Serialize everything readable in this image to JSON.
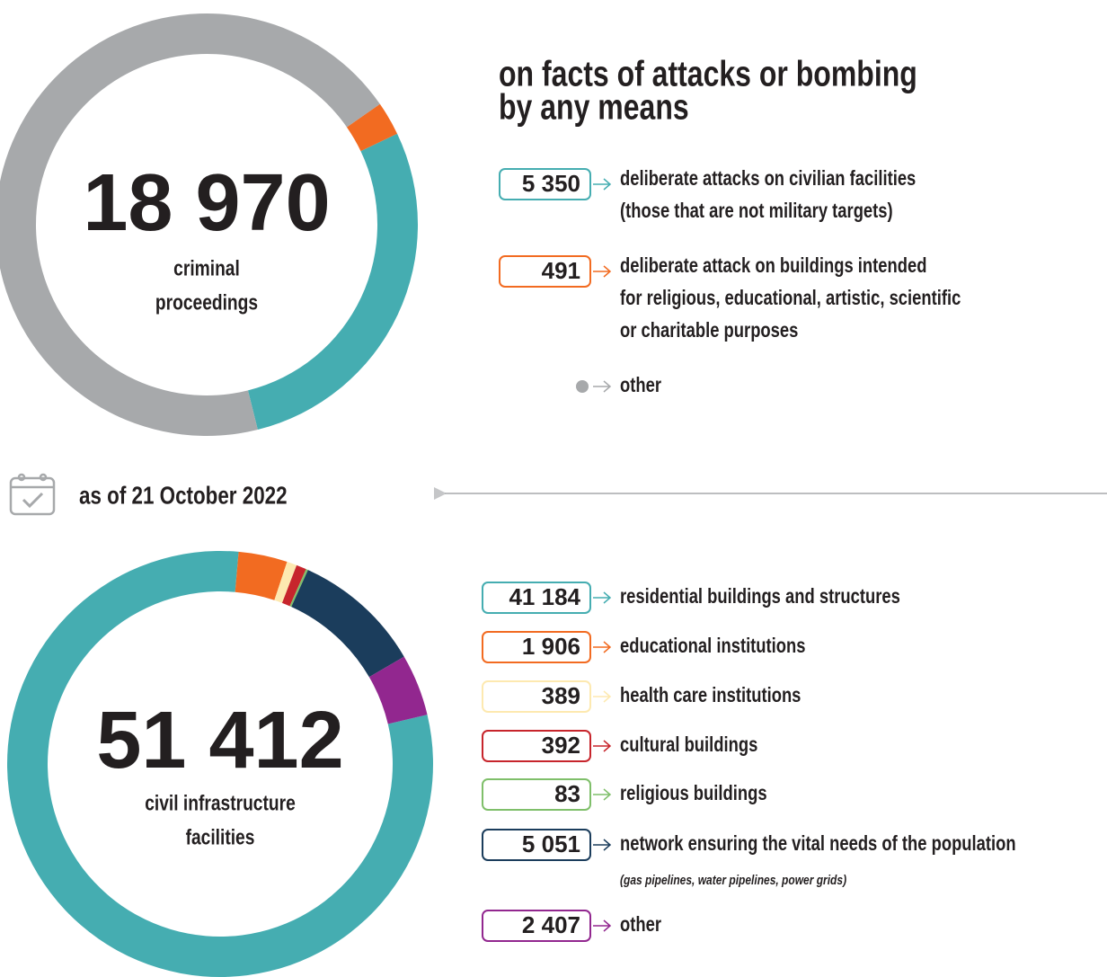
{
  "date": "as of 21 October 2022",
  "chart_data": [
    {
      "type": "donut",
      "title": [
        "on facts of attacks or bombing",
        "by any means"
      ],
      "total": {
        "value": 18970,
        "label": "18 970"
      },
      "center_text": [
        "criminal",
        "proceedings"
      ],
      "categories": [
        [
          "deliberate attacks on civilian facilities",
          "(those that are not military targets)"
        ],
        [
          "deliberate attack on buildings intended",
          "for religious, educational, artistic, scientific",
          "or charitable purposes"
        ],
        [
          "other"
        ]
      ],
      "values": [
        5350,
        491,
        13129
      ],
      "value_labels": [
        "5 350",
        "491",
        null
      ],
      "colors": [
        "#45adb1",
        "#f26b21",
        "#a7a9ab"
      ]
    },
    {
      "type": "donut",
      "total": {
        "value": 51412,
        "label": "51 412"
      },
      "center_text": [
        "civil infrastructure",
        "facilities"
      ],
      "categories": [
        [
          "residential buildings and structures"
        ],
        [
          "educational institutions"
        ],
        [
          "health care institutions"
        ],
        [
          "cultural buildings"
        ],
        [
          "religious buildings"
        ],
        [
          "network ensuring the vital needs of the population"
        ],
        [
          "other"
        ]
      ],
      "notes": [
        null,
        null,
        null,
        null,
        null,
        "(gas pipelines, water pipelines, power grids)",
        null
      ],
      "values": [
        41184,
        1906,
        389,
        392,
        83,
        5051,
        2407
      ],
      "value_labels": [
        "41 184",
        "1 906",
        "389",
        "392",
        "83",
        "5 051",
        "2 407"
      ],
      "colors": [
        "#45adb1",
        "#f26b21",
        "#fde9b0",
        "#c7252c",
        "#7fbf6a",
        "#1b3d5c",
        "#92278f"
      ]
    }
  ]
}
